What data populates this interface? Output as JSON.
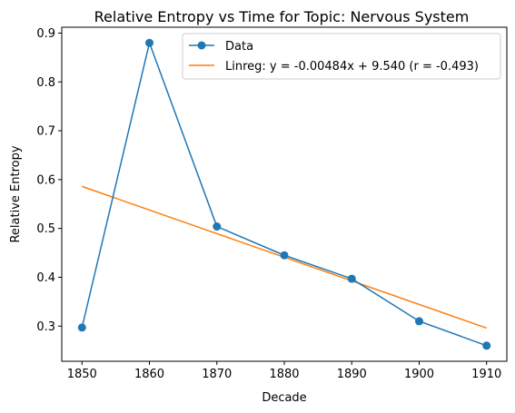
{
  "chart_data": {
    "type": "line",
    "title": "Relative Entropy vs Time for Topic: Nervous System",
    "xlabel": "Decade",
    "ylabel": "Relative Entropy",
    "xlim": [
      1847,
      1913
    ],
    "ylim": [
      0.228,
      0.912
    ],
    "x_ticks": [
      1850,
      1860,
      1870,
      1880,
      1890,
      1900,
      1910
    ],
    "y_ticks": [
      0.3,
      0.4,
      0.5,
      0.6,
      0.7,
      0.8,
      0.9
    ],
    "x_tick_labels": [
      "1850",
      "1860",
      "1870",
      "1880",
      "1890",
      "1900",
      "1910"
    ],
    "y_tick_labels": [
      "0.3",
      "0.4",
      "0.5",
      "0.6",
      "0.7",
      "0.8",
      "0.9"
    ],
    "grid": false,
    "legend_position": "top-right",
    "series": [
      {
        "name": "Data",
        "kind": "line-marker",
        "color": "#1f77b4",
        "x": [
          1850,
          1860,
          1870,
          1880,
          1890,
          1900,
          1910
        ],
        "y": [
          0.297,
          0.88,
          0.504,
          0.445,
          0.397,
          0.31,
          0.26
        ]
      },
      {
        "name": "Linreg: y = -0.00484x + 9.540 (r = -0.493)",
        "kind": "line",
        "color": "#ff7f0e",
        "slope": -0.00484,
        "intercept": 9.54,
        "x": [
          1850,
          1910
        ],
        "y": [
          0.586,
          0.296
        ]
      }
    ]
  }
}
